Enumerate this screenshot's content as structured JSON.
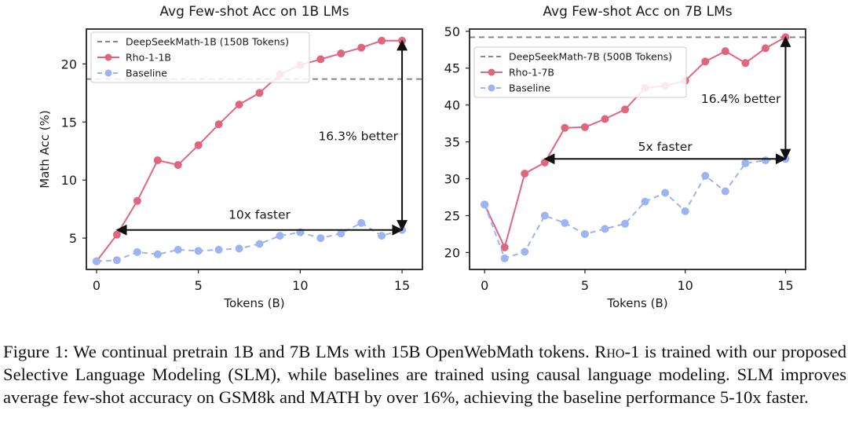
{
  "chart_data": [
    {
      "type": "line",
      "title": "Avg Few-shot Acc on 1B LMs",
      "xlabel": "Tokens (B)",
      "ylabel": "Math Acc (%)",
      "xlim": [
        -0.5,
        16
      ],
      "ylim": [
        2.3,
        23.0
      ],
      "xticks": [
        0,
        5,
        10,
        15
      ],
      "yticks": [
        5,
        10,
        15,
        20
      ],
      "grid": false,
      "legend_position": "top-left",
      "x": [
        0,
        1,
        2,
        3,
        4,
        5,
        6,
        7,
        8,
        9,
        10,
        11,
        12,
        13,
        14,
        15
      ],
      "series": [
        {
          "name": "Rho-1-1B",
          "color": "#e06680",
          "x": [
            0,
            1,
            2,
            3,
            4,
            5,
            6,
            7,
            8,
            9,
            10,
            11,
            12,
            13,
            14,
            15
          ],
          "values": [
            3.0,
            5.3,
            8.2,
            11.7,
            11.3,
            13.0,
            14.8,
            16.5,
            17.5,
            19.1,
            19.9,
            20.4,
            20.9,
            21.4,
            22.0,
            22.0
          ]
        },
        {
          "name": "Baseline",
          "color": "#9db4f2",
          "dashed": true,
          "x": [
            0,
            1,
            2,
            3,
            4,
            5,
            6,
            7,
            8,
            9,
            10,
            11,
            12,
            13,
            14,
            15
          ],
          "values": [
            3.0,
            3.1,
            3.8,
            3.6,
            4.0,
            3.9,
            4.0,
            4.1,
            4.5,
            5.2,
            5.5,
            5.0,
            5.4,
            6.3,
            5.2,
            5.7
          ]
        }
      ],
      "reference_line": {
        "name": "DeepSeekMath-1B (150B Tokens)",
        "value": 18.7,
        "color": "#888888"
      },
      "annotations": [
        {
          "text": "10x faster",
          "type": "horizontal-arrow",
          "from": [
            1,
            5.7
          ],
          "to": [
            15,
            5.7
          ]
        },
        {
          "text": "16.3% better",
          "type": "vertical-arrow",
          "from": [
            15,
            5.7
          ],
          "to": [
            15,
            22.0
          ]
        }
      ]
    },
    {
      "type": "line",
      "title": "Avg Few-shot Acc on 7B LMs",
      "xlabel": "Tokens (B)",
      "ylabel": "",
      "xlim": [
        -0.75,
        16
      ],
      "ylim": [
        17.7,
        50.3
      ],
      "xticks": [
        0,
        5,
        10,
        15
      ],
      "yticks": [
        20,
        25,
        30,
        35,
        40,
        45,
        50
      ],
      "grid": false,
      "legend_position": "top-left",
      "x": [
        0,
        1,
        2,
        3,
        4,
        5,
        6,
        7,
        8,
        9,
        10,
        11,
        12,
        13,
        14,
        15
      ],
      "series": [
        {
          "name": "Rho-1-7B",
          "color": "#e06680",
          "x": [
            0,
            1,
            2,
            3,
            4,
            5,
            6,
            7,
            8,
            9,
            10,
            11,
            12,
            13,
            14,
            15
          ],
          "values": [
            26.5,
            20.7,
            30.7,
            32.2,
            36.9,
            37.0,
            38.1,
            39.4,
            42.3,
            42.6,
            43.3,
            45.9,
            47.3,
            45.7,
            47.7,
            49.2
          ]
        },
        {
          "name": "Baseline",
          "color": "#9db4f2",
          "dashed": true,
          "x": [
            0,
            1,
            2,
            3,
            4,
            5,
            6,
            7,
            8,
            9,
            10,
            11,
            12,
            13,
            14,
            15
          ],
          "values": [
            26.5,
            19.2,
            20.1,
            25.0,
            24.0,
            22.5,
            23.2,
            23.9,
            26.9,
            28.1,
            25.6,
            30.4,
            28.3,
            32.1,
            32.5,
            32.7
          ]
        }
      ],
      "reference_line": {
        "name": "DeepSeekMath-7B (500B Tokens)",
        "value": 49.2,
        "color": "#888888"
      },
      "annotations": [
        {
          "text": "5x faster",
          "type": "horizontal-arrow",
          "from": [
            3,
            32.7
          ],
          "to": [
            15,
            32.7
          ]
        },
        {
          "text": "16.4% better",
          "type": "vertical-arrow",
          "from": [
            15,
            32.7
          ],
          "to": [
            15,
            49.2
          ]
        }
      ]
    }
  ],
  "caption": {
    "label": "Figure 1: We continual pretrain 1B and 7B LMs with 15B OpenWebMath tokens. ",
    "method_prefix": "R",
    "method_smallcaps": "ho",
    "method_suffix": "-1",
    "rest": " is trained with our proposed Selective Language Modeling (SLM), while baselines are trained using causal language modeling. SLM improves average few-shot accuracy on GSM8k and MATH by over 16%, achieving the baseline performance 5-10x faster."
  }
}
